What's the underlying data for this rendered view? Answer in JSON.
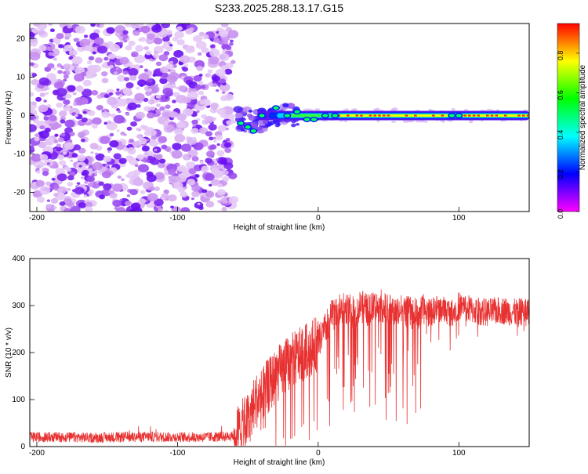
{
  "chart_data": [
    {
      "type": "heatmap",
      "title": "S233.2025.288.13.17.G15",
      "xlabel": "Height of straight line (km)",
      "ylabel": "Frequency (Hz)",
      "xlim": [
        -205,
        150
      ],
      "ylim": [
        -25,
        24
      ],
      "xticks": [
        -200,
        -100,
        0,
        100
      ],
      "yticks": [
        -20,
        -10,
        0,
        10,
        20
      ],
      "colorbar": {
        "label": "Normalized spectral amplitude",
        "range": [
          0,
          0.95
        ],
        "ticks": [
          0.0,
          0.2,
          0.4,
          0.6,
          0.8
        ],
        "tick_labels": [
          "0.0",
          "0.2",
          "0.4",
          "0.6",
          "0.8"
        ],
        "colormap": [
          "#ff00ff",
          "#0000ff",
          "#00ffff",
          "#00ff00",
          "#ffff00",
          "#ff0000"
        ]
      },
      "features": {
        "noise_region_x": [
          -205,
          -60
        ],
        "signal_line_frequency": 0,
        "signal_start_x": -60
      }
    },
    {
      "type": "line",
      "xlabel": "Height of straight line (km)",
      "ylabel": "SNR (10 * v/v)",
      "xlim": [
        -205,
        150
      ],
      "ylim": [
        0,
        400
      ],
      "xticks": [
        -200,
        -100,
        0,
        100
      ],
      "yticks": [
        0,
        100,
        200,
        300,
        400
      ],
      "line_color": "#e83232",
      "series": [
        {
          "x": [
            -205,
            -180,
            -160,
            -140,
            -120,
            -100,
            -80,
            -60,
            -50,
            -45,
            -40,
            -35,
            -30,
            -25,
            -20,
            -15,
            -10,
            -5,
            0,
            5,
            10,
            15,
            20,
            25,
            30,
            35,
            40,
            45,
            50,
            55,
            60,
            65,
            70,
            75,
            80,
            85,
            90,
            95,
            100,
            110,
            120,
            130,
            140,
            150
          ],
          "values": [
            20,
            20,
            19,
            20,
            21,
            20,
            20,
            22,
            55,
            95,
            110,
            130,
            150,
            165,
            180,
            190,
            200,
            210,
            220,
            250,
            280,
            290,
            295,
            285,
            300,
            290,
            295,
            300,
            290,
            285,
            290,
            285,
            280,
            290,
            285,
            295,
            290,
            285,
            300,
            290,
            285,
            290,
            285,
            290
          ]
        }
      ]
    }
  ]
}
